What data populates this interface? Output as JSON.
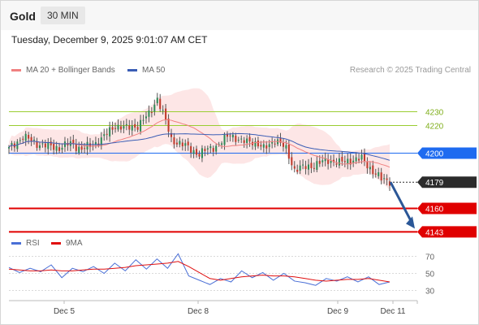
{
  "header": {
    "title": "Gold",
    "timeframe": "30 MIN"
  },
  "timestamp": "Tuesday, December 9, 2025 9:01:07 AM CET",
  "legend": {
    "ma20": "MA 20 + Bollinger Bands",
    "ma50": "MA 50",
    "rsi": "RSI",
    "rsi_ma": "9MA"
  },
  "copyright": "Research © 2025 Trading Central",
  "colors": {
    "ma20": "#f08080",
    "ma50": "#3a5db5",
    "bollinger_fill": "#fde2e2",
    "candle_up": "#2e8b57",
    "candle_down": "#c0392b",
    "resistance_green": "#9acd32",
    "resistance_blue": "#1e6bf0",
    "support_red": "#e00000",
    "current_price": "#2b2b2b",
    "arrow": "#2b5797",
    "rsi_line": "#4a6fd6",
    "rsi_ma_line": "#e01010"
  },
  "chart_data": [
    {
      "type": "candlestick",
      "title": "Gold",
      "x_ticks": [
        "Dec 5",
        "Dec 8",
        "Dec 9",
        "Dec 11"
      ],
      "ylim": [
        4135,
        4255
      ],
      "levels": [
        {
          "value": 4230,
          "label": "4230",
          "kind": "resistance",
          "style": "green-thin"
        },
        {
          "value": 4220,
          "label": "4220",
          "kind": "resistance",
          "style": "green-thin"
        },
        {
          "value": 4200,
          "label": "4200",
          "kind": "resistance",
          "style": "blue"
        },
        {
          "value": 4179,
          "label": "4179",
          "kind": "current",
          "style": "dark"
        },
        {
          "value": 4160,
          "label": "4160",
          "kind": "support",
          "style": "red"
        },
        {
          "value": 4143,
          "label": "4143",
          "kind": "support",
          "style": "red"
        }
      ],
      "forecast_arrow": {
        "from": 4179,
        "to": 4143,
        "direction": "down"
      },
      "close_path": [
        {
          "x": 0,
          "y": 4203
        },
        {
          "x": 5,
          "y": 4212
        },
        {
          "x": 10,
          "y": 4207
        },
        {
          "x": 14,
          "y": 4205
        },
        {
          "x": 18,
          "y": 4204
        },
        {
          "x": 22,
          "y": 4207
        },
        {
          "x": 26,
          "y": 4203
        },
        {
          "x": 30,
          "y": 4206
        },
        {
          "x": 34,
          "y": 4212
        },
        {
          "x": 38,
          "y": 4220
        },
        {
          "x": 42,
          "y": 4218
        },
        {
          "x": 46,
          "y": 4220
        },
        {
          "x": 50,
          "y": 4228
        },
        {
          "x": 53,
          "y": 4240
        },
        {
          "x": 56,
          "y": 4223
        },
        {
          "x": 58,
          "y": 4210
        },
        {
          "x": 62,
          "y": 4206
        },
        {
          "x": 65,
          "y": 4203
        },
        {
          "x": 68,
          "y": 4199
        },
        {
          "x": 71,
          "y": 4203
        },
        {
          "x": 75,
          "y": 4206
        },
        {
          "x": 79,
          "y": 4214
        },
        {
          "x": 83,
          "y": 4208
        },
        {
          "x": 87,
          "y": 4209
        },
        {
          "x": 91,
          "y": 4203
        },
        {
          "x": 95,
          "y": 4210
        },
        {
          "x": 99,
          "y": 4203
        },
        {
          "x": 102,
          "y": 4188
        },
        {
          "x": 106,
          "y": 4190
        },
        {
          "x": 110,
          "y": 4192
        },
        {
          "x": 114,
          "y": 4195
        },
        {
          "x": 118,
          "y": 4193
        },
        {
          "x": 122,
          "y": 4195
        },
        {
          "x": 126,
          "y": 4196
        },
        {
          "x": 130,
          "y": 4187
        },
        {
          "x": 133,
          "y": 4181
        },
        {
          "x": 136,
          "y": 4180
        }
      ]
    },
    {
      "type": "line",
      "title": "RSI",
      "yticks": [
        70,
        50,
        30
      ],
      "ylim": [
        20,
        80
      ],
      "series": [
        {
          "name": "RSI",
          "values": [
            57,
            51,
            56,
            52,
            60,
            45,
            56,
            52,
            58,
            50,
            62,
            53,
            66,
            55,
            67,
            56,
            73,
            47,
            42,
            37,
            44,
            40,
            53,
            45,
            51,
            42,
            50,
            41,
            39,
            36,
            44,
            41,
            46,
            40,
            46,
            37,
            40
          ]
        },
        {
          "name": "9MA",
          "values": [
            55,
            54,
            53,
            53,
            54,
            53,
            53,
            54,
            55,
            55,
            56,
            57,
            59,
            60,
            61,
            62,
            64,
            58,
            51,
            44,
            42,
            44,
            46,
            47,
            48,
            47,
            47,
            46,
            44,
            42,
            41,
            42,
            43,
            43,
            44,
            42,
            40
          ]
        }
      ]
    }
  ]
}
